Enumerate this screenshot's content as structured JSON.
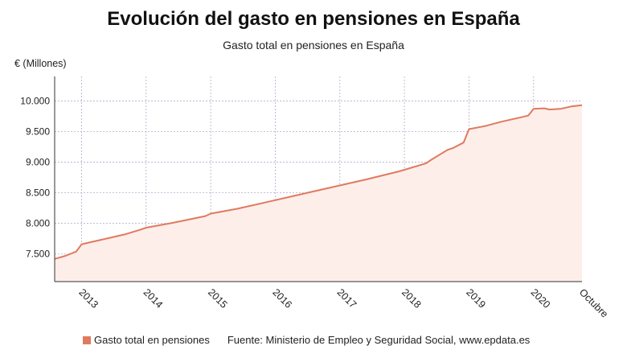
{
  "header": {
    "title": "Evolución del gasto en pensiones en España",
    "subtitle": "Gasto total en pensiones en España"
  },
  "footer": {
    "legend_label": "Gasto total en pensiones",
    "source": "Fuente: Ministerio de Empleo y Seguridad Social, www.epdata.es"
  },
  "colors": {
    "series": "#e07a5f",
    "fill": "#fdeeea",
    "grid": "#b7a9c9"
  },
  "chart_data": {
    "type": "area",
    "title": "Evolución del gasto en pensiones en España",
    "subtitle": "Gasto total en pensiones en España",
    "ylabel": "€ (Millones)",
    "xlabel": "",
    "ylim": [
      7050,
      10400
    ],
    "xlim": [
      "2012-08",
      "2020-10"
    ],
    "yticks": [
      7500,
      8000,
      8500,
      9000,
      9500,
      10000
    ],
    "ytick_labels": [
      "7.500",
      "8.000",
      "8.500",
      "9.000",
      "9.500",
      "10.000"
    ],
    "xticks": [
      "2013",
      "2014",
      "2015",
      "2016",
      "2017",
      "2018",
      "2019",
      "2020",
      "Octubre"
    ],
    "grid": true,
    "legend_position": "bottom-left",
    "series": [
      {
        "name": "Gasto total en pensiones",
        "x": [
          "2012-08",
          "2012-10",
          "2012-12",
          "2013-01",
          "2013-03",
          "2013-06",
          "2013-09",
          "2013-12",
          "2014-01",
          "2014-06",
          "2014-12",
          "2015-01",
          "2015-06",
          "2015-12",
          "2016-06",
          "2016-12",
          "2017-06",
          "2017-12",
          "2018-05",
          "2018-06",
          "2018-09",
          "2018-10",
          "2018-12",
          "2019-01",
          "2019-04",
          "2019-07",
          "2019-10",
          "2019-12",
          "2020-01",
          "2020-03",
          "2020-04",
          "2020-06",
          "2020-08",
          "2020-10"
        ],
        "y": [
          7420,
          7470,
          7540,
          7660,
          7700,
          7760,
          7820,
          7900,
          7930,
          8010,
          8120,
          8160,
          8240,
          8360,
          8480,
          8600,
          8720,
          8850,
          8980,
          9040,
          9200,
          9230,
          9320,
          9540,
          9590,
          9660,
          9720,
          9760,
          9870,
          9880,
          9860,
          9870,
          9910,
          9930
        ]
      }
    ]
  }
}
